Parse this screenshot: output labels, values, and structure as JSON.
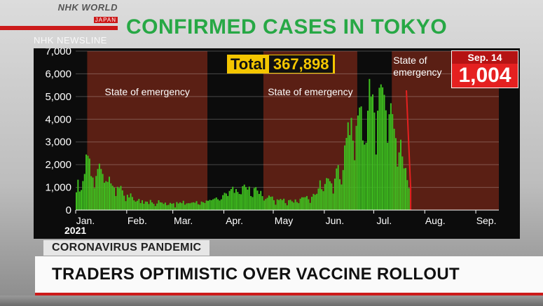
{
  "broadcaster": {
    "logo_line1": "NHK WORLD",
    "logo_line2": "JAPAN",
    "program": "NHK NEWSLINE"
  },
  "chart_data": {
    "type": "bar",
    "title": "CONFIRMED CASES IN TOKYO",
    "year_label": "2021",
    "ylim": [
      0,
      7000
    ],
    "y_ticks": [
      0,
      1000,
      2000,
      3000,
      4000,
      5000,
      6000,
      7000
    ],
    "y_tick_labels": [
      "0",
      "1,000",
      "2,000",
      "3,000",
      "4,000",
      "5,000",
      "6,000",
      "7,000"
    ],
    "x_tick_labels": [
      "Jan.",
      "Feb.",
      "Mar.",
      "Apr.",
      "May",
      "Jun.",
      "Jul.",
      "Aug.",
      "Sep."
    ],
    "x_range": [
      "2021-01-01",
      "2021-09-14"
    ],
    "total_label": "Total",
    "total_value": "367,898",
    "latest_date": "Sep. 14",
    "latest_value": "1,004",
    "bar_color": "#3fbf1f",
    "latest_bar_color": "#e52020",
    "emergency_color": "#5a1f14",
    "emergency_periods": [
      {
        "label": "State of emergency",
        "start": "2021-01-08",
        "end": "2021-03-21"
      },
      {
        "label": "State of emergency",
        "start": "2021-04-25",
        "end": "2021-06-20"
      },
      {
        "label": "State of\nemergency",
        "start": "2021-07-12",
        "end": "2021-09-14"
      }
    ],
    "series": [
      {
        "start_date": "2021-01-01",
        "values": [
          783,
          1337,
          816,
          884,
          1278,
          1591,
          2447,
          2392,
          2268,
          1494,
          1433,
          970,
          1502,
          1809,
          2044,
          1809,
          1592,
          1204,
          1274,
          1240,
          1471,
          1175,
          1070,
          986,
          618,
          1026,
          973,
          1064,
          868,
          633,
          393,
          676,
          556,
          734,
          577,
          429,
          371,
          412,
          491,
          307,
          434,
          279,
          378,
          369,
          266,
          445,
          339,
          275,
          179,
          287,
          432,
          340,
          330,
          272,
          329,
          213,
          232,
          316,
          279,
          301,
          116,
          353,
          290,
          340,
          303,
          409,
          237,
          294,
          303,
          300,
          327,
          342,
          323,
          394,
          256,
          235,
          376,
          344,
          312,
          420,
          409,
          446,
          434,
          475,
          510,
          555,
          475,
          421,
          475,
          658,
          760,
          729,
          621,
          843,
          925,
          1027,
          759,
          925,
          797,
          709,
          697,
          1050,
          1121,
          1010,
          901,
          1032,
          618,
          573,
          969,
          1010,
          859,
          711,
          843,
          615,
          419,
          487,
          541,
          640,
          584,
          597,
          434,
          235,
          471,
          442,
          490,
          440,
          501,
          304,
          209,
          435,
          453,
          385,
          330,
          467,
          351,
          304,
          501,
          564,
          562,
          570,
          619,
          476,
          317,
          585,
          714,
          673,
          716,
          950,
          1308,
          920,
          830,
          1149,
          1410,
          1387,
          1271,
          1177,
          727,
          1387,
          1832,
          1979,
          1359,
          1128,
          1763,
          2848,
          3177,
          3865,
          3300,
          4058,
          3058,
          2195,
          3709,
          4166,
          4515,
          4566,
          3065,
          2884,
          2962,
          4377,
          5773,
          4989,
          5094,
          4295,
          2447,
          4377,
          5386,
          5534,
          5405,
          5074,
          4392,
          2962,
          4220,
          4704,
          4227,
          3581,
          3168,
          1915,
          2539,
          3099,
          2362,
          1834,
          1853,
          1319,
          968,
          1004
        ]
      }
    ]
  }
}
